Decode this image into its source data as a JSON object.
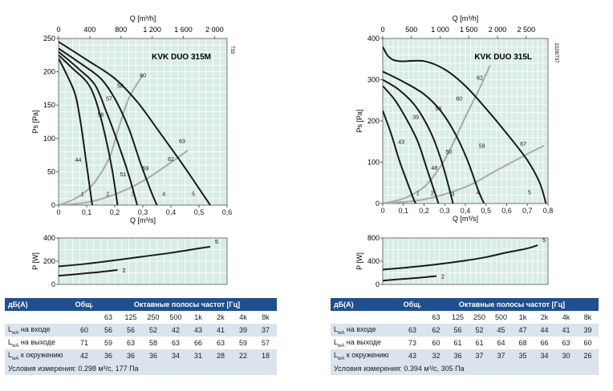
{
  "chart_data": [
    {
      "type": "line",
      "title": "KVK DUO 315M",
      "side_code": "733",
      "xlabel": "Q [m³/s]",
      "x2label": "Q [m³/h]",
      "ylabel": "Ps [Pa]",
      "xlim": [
        0,
        0.6
      ],
      "ylim": [
        0,
        250
      ],
      "x2lim": [
        0,
        2160
      ],
      "xticks": [
        "0",
        "0,1",
        "0,2",
        "0,3",
        "0,4",
        "0,5",
        "0,6"
      ],
      "yticks": [
        "0",
        "50",
        "100",
        "150",
        "200",
        "250"
      ],
      "x2ticks": [
        "0",
        "400",
        "800",
        "1 200",
        "1 600",
        "2 000"
      ],
      "x2tick_values": [
        0,
        400,
        800,
        1200,
        1600,
        2000
      ],
      "grid": true,
      "curves": [
        {
          "label": "1",
          "points": [
            [
              0,
              220
            ],
            [
              0.03,
              195
            ],
            [
              0.06,
              165
            ],
            [
              0.08,
              120
            ],
            [
              0.1,
              60
            ],
            [
              0.12,
              0
            ]
          ]
        },
        {
          "label": "2",
          "points": [
            [
              0,
              225
            ],
            [
              0.05,
              205
            ],
            [
              0.1,
              185
            ],
            [
              0.13,
              160
            ],
            [
              0.16,
              115
            ],
            [
              0.19,
              55
            ],
            [
              0.21,
              0
            ]
          ]
        },
        {
          "label": "3",
          "points": [
            [
              0,
              230
            ],
            [
              0.07,
              205
            ],
            [
              0.13,
              180
            ],
            [
              0.17,
              140
            ],
            [
              0.21,
              95
            ],
            [
              0.25,
              45
            ],
            [
              0.28,
              0
            ]
          ]
        },
        {
          "label": "4",
          "points": [
            [
              0,
              235
            ],
            [
              0.08,
              212
            ],
            [
              0.15,
              190
            ],
            [
              0.2,
              160
            ],
            [
              0.25,
              115
            ],
            [
              0.29,
              65
            ],
            [
              0.33,
              20
            ],
            [
              0.35,
              0
            ]
          ]
        },
        {
          "label": "5",
          "points": [
            [
              0,
              245
            ],
            [
              0.1,
              218
            ],
            [
              0.2,
              190
            ],
            [
              0.28,
              155
            ],
            [
              0.35,
              115
            ],
            [
              0.41,
              80
            ],
            [
              0.46,
              50
            ],
            [
              0.5,
              25
            ],
            [
              0.54,
              0
            ]
          ]
        }
      ],
      "system_curves": [
        {
          "points": [
            [
              0,
              0
            ],
            [
              0.06,
              10
            ],
            [
              0.12,
              30
            ],
            [
              0.18,
              70
            ],
            [
              0.21,
              110
            ],
            [
              0.25,
              160
            ],
            [
              0.3,
              195
            ]
          ]
        },
        {
          "points": [
            [
              0,
              0
            ],
            [
              0.1,
              4
            ],
            [
              0.2,
              16
            ],
            [
              0.3,
              36
            ],
            [
              0.4,
              64
            ],
            [
              0.46,
              82
            ]
          ]
        }
      ],
      "point_labels": [
        {
          "text": "44",
          "x": 0.07,
          "y": 65
        },
        {
          "text": "60",
          "x": 0.3,
          "y": 192
        },
        {
          "text": "58",
          "x": 0.22,
          "y": 176
        },
        {
          "text": "57",
          "x": 0.18,
          "y": 157
        },
        {
          "text": "56",
          "x": 0.15,
          "y": 133
        },
        {
          "text": "63",
          "x": 0.44,
          "y": 93
        },
        {
          "text": "62",
          "x": 0.4,
          "y": 66
        },
        {
          "text": "59",
          "x": 0.31,
          "y": 52
        },
        {
          "text": "51",
          "x": 0.23,
          "y": 43
        },
        {
          "text": "1",
          "x": 0.085,
          "y": 14
        },
        {
          "text": "2",
          "x": 0.175,
          "y": 14
        },
        {
          "text": "3",
          "x": 0.265,
          "y": 14
        },
        {
          "text": "4",
          "x": 0.375,
          "y": 14
        },
        {
          "text": "5",
          "x": 0.48,
          "y": 14
        }
      ],
      "power": {
        "ylabel": "P [W]",
        "ylim": [
          0,
          400
        ],
        "yticks": [
          "0",
          "200",
          "400"
        ],
        "curves": [
          {
            "label": "5",
            "points": [
              [
                0,
                155
              ],
              [
                0.1,
                178
              ],
              [
                0.2,
                208
              ],
              [
                0.3,
                240
              ],
              [
                0.4,
                272
              ],
              [
                0.5,
                310
              ],
              [
                0.54,
                325
              ]
            ]
          },
          {
            "label": "2",
            "points": [
              [
                0,
                75
              ],
              [
                0.05,
                85
              ],
              [
                0.1,
                97
              ],
              [
                0.15,
                108
              ],
              [
                0.21,
                125
              ]
            ]
          }
        ]
      }
    },
    {
      "type": "line",
      "title": "KVK DUO 315L",
      "side_code": "2228/737",
      "xlabel": "Q [m³/s]",
      "x2label": "Q [m³/h]",
      "ylabel": "Ps [Pa]",
      "xlim": [
        0,
        0.8
      ],
      "ylim": [
        0,
        400
      ],
      "x2lim": [
        0,
        2880
      ],
      "xticks": [
        "0",
        "0,1",
        "0,2",
        "0,3",
        "0,4",
        "0,5",
        "0,6",
        "0,7",
        "0,8"
      ],
      "yticks": [
        "0",
        "100",
        "200",
        "300",
        "400"
      ],
      "x2ticks": [
        "0",
        "500",
        "1 000",
        "1 500",
        "2 000",
        "2 500"
      ],
      "x2tick_values": [
        0,
        500,
        1000,
        1500,
        2000,
        2500
      ],
      "grid": true,
      "curves": [
        {
          "label": "1",
          "points": [
            [
              0,
              225
            ],
            [
              0.04,
              170
            ],
            [
              0.08,
              105
            ],
            [
              0.12,
              50
            ],
            [
              0.15,
              10
            ],
            [
              0.16,
              0
            ]
          ]
        },
        {
          "label": "2",
          "points": [
            [
              0,
              285
            ],
            [
              0.06,
              250
            ],
            [
              0.12,
              200
            ],
            [
              0.17,
              150
            ],
            [
              0.21,
              90
            ],
            [
              0.25,
              30
            ],
            [
              0.27,
              0
            ]
          ]
        },
        {
          "label": "3",
          "points": [
            [
              0,
              300
            ],
            [
              0.08,
              275
            ],
            [
              0.16,
              235
            ],
            [
              0.23,
              175
            ],
            [
              0.28,
              110
            ],
            [
              0.32,
              40
            ],
            [
              0.34,
              0
            ]
          ]
        },
        {
          "label": "4",
          "points": [
            [
              0,
              320
            ],
            [
              0.1,
              295
            ],
            [
              0.2,
              265
            ],
            [
              0.28,
              225
            ],
            [
              0.35,
              170
            ],
            [
              0.41,
              105
            ],
            [
              0.46,
              35
            ],
            [
              0.49,
              0
            ]
          ]
        },
        {
          "label": "5",
          "points": [
            [
              0,
              380
            ],
            [
              0.03,
              355
            ],
            [
              0.08,
              345
            ],
            [
              0.2,
              345
            ],
            [
              0.3,
              325
            ],
            [
              0.4,
              285
            ],
            [
              0.5,
              230
            ],
            [
              0.6,
              170
            ],
            [
              0.7,
              105
            ],
            [
              0.76,
              50
            ],
            [
              0.79,
              0
            ]
          ]
        }
      ],
      "system_curves": [
        {
          "points": [
            [
              0,
              0
            ],
            [
              0.1,
              12
            ],
            [
              0.2,
              40
            ],
            [
              0.28,
              90
            ],
            [
              0.34,
              145
            ],
            [
              0.4,
              210
            ],
            [
              0.46,
              270
            ],
            [
              0.52,
              335
            ]
          ]
        },
        {
          "points": [
            [
              0,
              0
            ],
            [
              0.2,
              10
            ],
            [
              0.4,
              40
            ],
            [
              0.55,
              80
            ],
            [
              0.7,
              120
            ],
            [
              0.78,
              140
            ]
          ]
        }
      ],
      "point_labels": [
        {
          "text": "43",
          "x": 0.09,
          "y": 145
        },
        {
          "text": "39",
          "x": 0.16,
          "y": 205
        },
        {
          "text": "56",
          "x": 0.27,
          "y": 225
        },
        {
          "text": "60",
          "x": 0.37,
          "y": 250
        },
        {
          "text": "62",
          "x": 0.47,
          "y": 300
        },
        {
          "text": "50",
          "x": 0.32,
          "y": 120
        },
        {
          "text": "48",
          "x": 0.25,
          "y": 82
        },
        {
          "text": "59",
          "x": 0.48,
          "y": 135
        },
        {
          "text": "67",
          "x": 0.68,
          "y": 140
        },
        {
          "text": "1",
          "x": 0.17,
          "y": 20
        },
        {
          "text": "2",
          "x": 0.24,
          "y": 20
        },
        {
          "text": "3",
          "x": 0.34,
          "y": 18
        },
        {
          "text": "4",
          "x": 0.46,
          "y": 22
        },
        {
          "text": "5",
          "x": 0.71,
          "y": 22
        }
      ],
      "power": {
        "ylabel": "P [W]",
        "ylim": [
          0,
          800
        ],
        "yticks": [
          "0",
          "400",
          "800"
        ],
        "curves": [
          {
            "label": "5",
            "points": [
              [
                0,
                255
              ],
              [
                0.2,
                320
              ],
              [
                0.4,
                410
              ],
              [
                0.5,
                470
              ],
              [
                0.6,
                550
              ],
              [
                0.7,
                620
              ],
              [
                0.75,
                675
              ]
            ]
          },
          {
            "label": "2",
            "points": [
              [
                0,
                65
              ],
              [
                0.08,
                90
              ],
              [
                0.16,
                110
              ],
              [
                0.26,
                145
              ]
            ]
          }
        ]
      }
    }
  ],
  "tables": [
    {
      "head_db": "дБ(A)",
      "head_total": "Общ.",
      "head_bands": "Октавные полосы частот [Гц]",
      "bands": [
        "63",
        "125",
        "250",
        "500",
        "1k",
        "2k",
        "4k",
        "8k"
      ],
      "rows": [
        {
          "label_pre": "L",
          "label_sub": "wA",
          "label_post": " на входе",
          "total": "60",
          "values": [
            "56",
            "56",
            "52",
            "42",
            "43",
            "41",
            "39",
            "37"
          ]
        },
        {
          "label_pre": "L",
          "label_sub": "wA",
          "label_post": " на выходе",
          "total": "71",
          "values": [
            "59",
            "63",
            "58",
            "63",
            "66",
            "63",
            "59",
            "57"
          ]
        },
        {
          "label_pre": "L",
          "label_sub": "wA",
          "label_post": " к окружению",
          "total": "42",
          "values": [
            "36",
            "36",
            "36",
            "34",
            "31",
            "28",
            "22",
            "18"
          ]
        }
      ],
      "conditions": "Условия измерения: 0.298 м³/с, 177 Па"
    },
    {
      "head_db": "дБ(A)",
      "head_total": "Общ.",
      "head_bands": "Октавные полосы частот [Гц]",
      "bands": [
        "63",
        "125",
        "250",
        "500",
        "1k",
        "2k",
        "4k",
        "8k"
      ],
      "rows": [
        {
          "label_pre": "L",
          "label_sub": "wA",
          "label_post": " на входе",
          "total": "63",
          "values": [
            "62",
            "56",
            "52",
            "45",
            "47",
            "44",
            "41",
            "39"
          ]
        },
        {
          "label_pre": "L",
          "label_sub": "wA",
          "label_post": " на выходе",
          "total": "73",
          "values": [
            "60",
            "61",
            "61",
            "64",
            "68",
            "66",
            "63",
            "60"
          ]
        },
        {
          "label_pre": "L",
          "label_sub": "wA",
          "label_post": " к окружению",
          "total": "43",
          "values": [
            "32",
            "36",
            "37",
            "37",
            "35",
            "34",
            "30",
            "26"
          ]
        }
      ],
      "conditions": "Условия измерения: 0.394 м³/с, 305 Па"
    }
  ],
  "colors": {
    "plot_bg": "#d9ece6",
    "grid": "#ffffff",
    "curve": "#1a1a1a",
    "system_curve": "#a9a9a9",
    "table_head": "#1f4f8f",
    "table_stripe": "#dbe3ee"
  }
}
